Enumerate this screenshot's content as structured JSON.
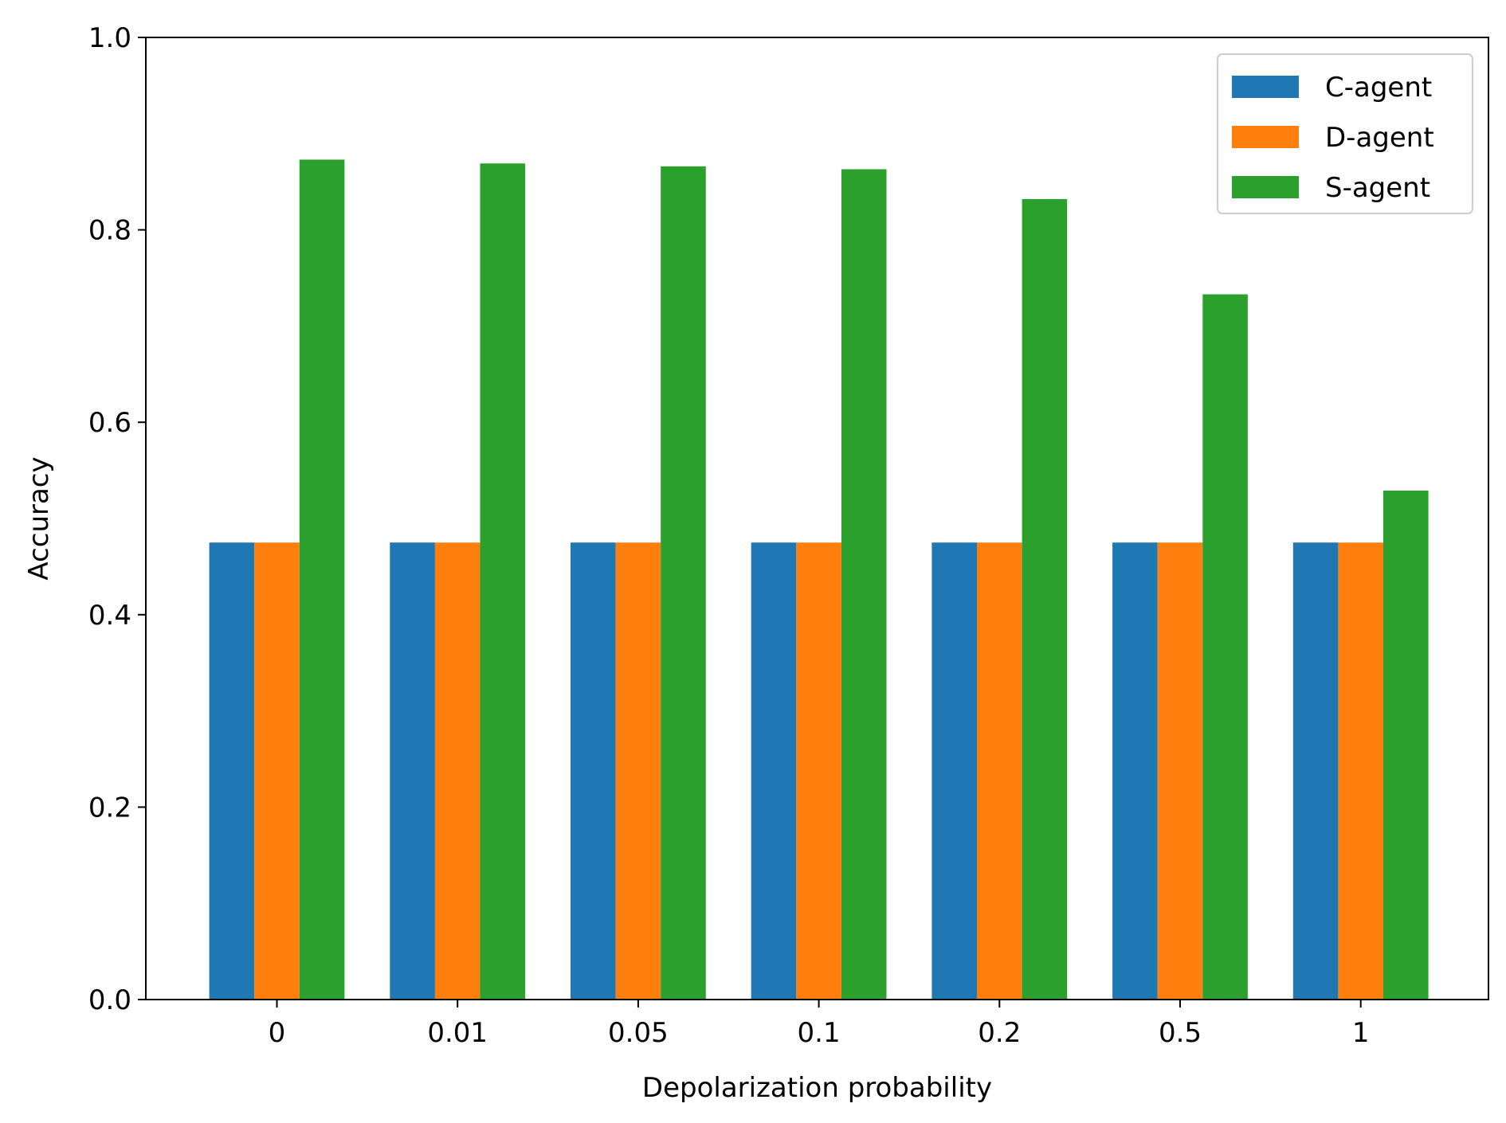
{
  "chart_data": {
    "type": "bar",
    "xlabel": "Depolarization probability",
    "ylabel": "Accuracy",
    "categories": [
      "0",
      "0.01",
      "0.05",
      "0.1",
      "0.2",
      "0.5",
      "1"
    ],
    "ylim": [
      0,
      1.0
    ],
    "yticks": [
      "0.0",
      "0.2",
      "0.4",
      "0.6",
      "0.8",
      "1.0"
    ],
    "grid": false,
    "legend_position": "top-right",
    "series": [
      {
        "name": "C-agent",
        "color": "#1f77b4",
        "values": [
          0.475,
          0.475,
          0.475,
          0.475,
          0.475,
          0.475,
          0.475
        ]
      },
      {
        "name": "D-agent",
        "color": "#ff7f0e",
        "values": [
          0.475,
          0.475,
          0.475,
          0.475,
          0.475,
          0.475,
          0.475
        ]
      },
      {
        "name": "S-agent",
        "color": "#2ca02c",
        "values": [
          0.873,
          0.869,
          0.866,
          0.863,
          0.832,
          0.733,
          0.529
        ]
      }
    ]
  }
}
